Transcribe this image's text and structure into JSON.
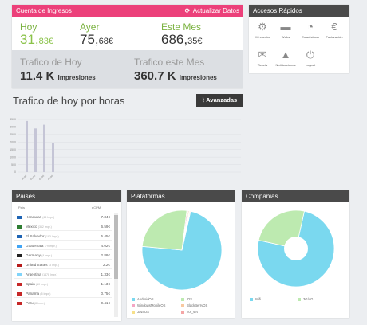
{
  "income": {
    "title": "Cuenta de Ingresos",
    "refresh_label": "Actualizar Datos",
    "today_label": "Hoy",
    "today_int": "31,",
    "today_dec": "83€",
    "yesterday_label": "Ayer",
    "yesterday_int": "75,",
    "yesterday_dec": "68€",
    "month_label": "Este Mes",
    "month_int": "686,",
    "month_dec": "35€",
    "traffic_today_label": "Trafico de Hoy",
    "traffic_today_value": "11.4 K",
    "traffic_month_label": "Trafico este Mes",
    "traffic_month_value": "360.7 K",
    "impressions_unit": "Impresiones"
  },
  "quick": {
    "title": "Accesos Rápidos",
    "items": [
      {
        "icon": "gear-icon",
        "glyph": "⚙",
        "label": "Mi cuenta"
      },
      {
        "icon": "folder-icon",
        "glyph": "▬",
        "label": "Webs"
      },
      {
        "icon": "pie-icon",
        "glyph": "◔",
        "label": "Estadísticas"
      },
      {
        "icon": "euro-icon",
        "glyph": "€",
        "label": "Facturación"
      },
      {
        "icon": "mail-icon",
        "glyph": "✉",
        "label": "Tickets"
      },
      {
        "icon": "bell-icon",
        "glyph": "▲",
        "label": "Notificaciones"
      },
      {
        "icon": "power-icon",
        "glyph": "⏻",
        "label": "Logout"
      }
    ]
  },
  "hourly": {
    "title": "Trafico de hoy por horas",
    "button_label": "Avanzadas"
  },
  "chart_data": {
    "type": "bar",
    "yticks": [
      "3500",
      "3000",
      "2500",
      "2000",
      "1500",
      "1000",
      "500",
      "0"
    ],
    "ylim": [
      0,
      3500
    ],
    "categories": [
      "00:00",
      "01:00",
      "02:00",
      "03:00"
    ],
    "values": [
      3400,
      2900,
      3150,
      1950
    ],
    "color": "#c5c5d6"
  },
  "paises": {
    "title": "Paises",
    "col_country": "País",
    "col_ecpm": "eCPM",
    "rows": [
      {
        "name": "Honduras",
        "imp": "(45 Impr.)",
        "ecpm": "7.34€",
        "flag": "#1e64b4"
      },
      {
        "name": "Mexico",
        "imp": "(362 Impr.)",
        "ecpm": "6.59€",
        "flag": "#2e7d32"
      },
      {
        "name": "El Salvador",
        "imp": "(193 Impr.)",
        "ecpm": "5.45€",
        "flag": "#1e64b4"
      },
      {
        "name": "Guatemala",
        "imp": "(79 Impr.)",
        "ecpm": "4.02€",
        "flag": "#42a5f5"
      },
      {
        "name": "Germany",
        "imp": "(4 Impr.)",
        "ecpm": "2.88€",
        "flag": "#222222"
      },
      {
        "name": "United States",
        "imp": "(3 Impr.)",
        "ecpm": "2.2€",
        "flag": "#b71c1c"
      },
      {
        "name": "Argentina",
        "imp": "(1478 Impr.)",
        "ecpm": "1.33€",
        "flag": "#81d4fa"
      },
      {
        "name": "Spain",
        "imp": "(10 Impr.)",
        "ecpm": "1.13€",
        "flag": "#c62828"
      },
      {
        "name": "Panama",
        "imp": "(5 Impr.)",
        "ecpm": "0.75€",
        "flag": "#c62828"
      },
      {
        "name": "Peru",
        "imp": "(8 Impr.)",
        "ecpm": "0.41€",
        "flag": "#c62828"
      }
    ]
  },
  "plataformas": {
    "title": "Plataformas",
    "legend": [
      {
        "label": "AndroidOS",
        "color": "#7ad8ef"
      },
      {
        "label": "iOS",
        "color": "#bdeab0"
      },
      {
        "label": "WindowsMobileOS",
        "color": "#f4a6c4"
      },
      {
        "label": "BlackBerryOS",
        "color": "#f8c9a0"
      },
      {
        "label": "JavaOS",
        "color": "#f7e08a"
      },
      {
        "label": "not_set",
        "color": "#f4a6a6"
      }
    ],
    "slices": [
      73,
      25.5,
      0.5,
      0.4,
      0.3,
      0.3
    ]
  },
  "companias": {
    "title": "Compañias",
    "legend": [
      {
        "label": "Wifi",
        "color": "#7ad8ef"
      },
      {
        "label": "3G/4G",
        "color": "#bdeab0"
      }
    ],
    "slices": [
      75,
      25
    ]
  }
}
